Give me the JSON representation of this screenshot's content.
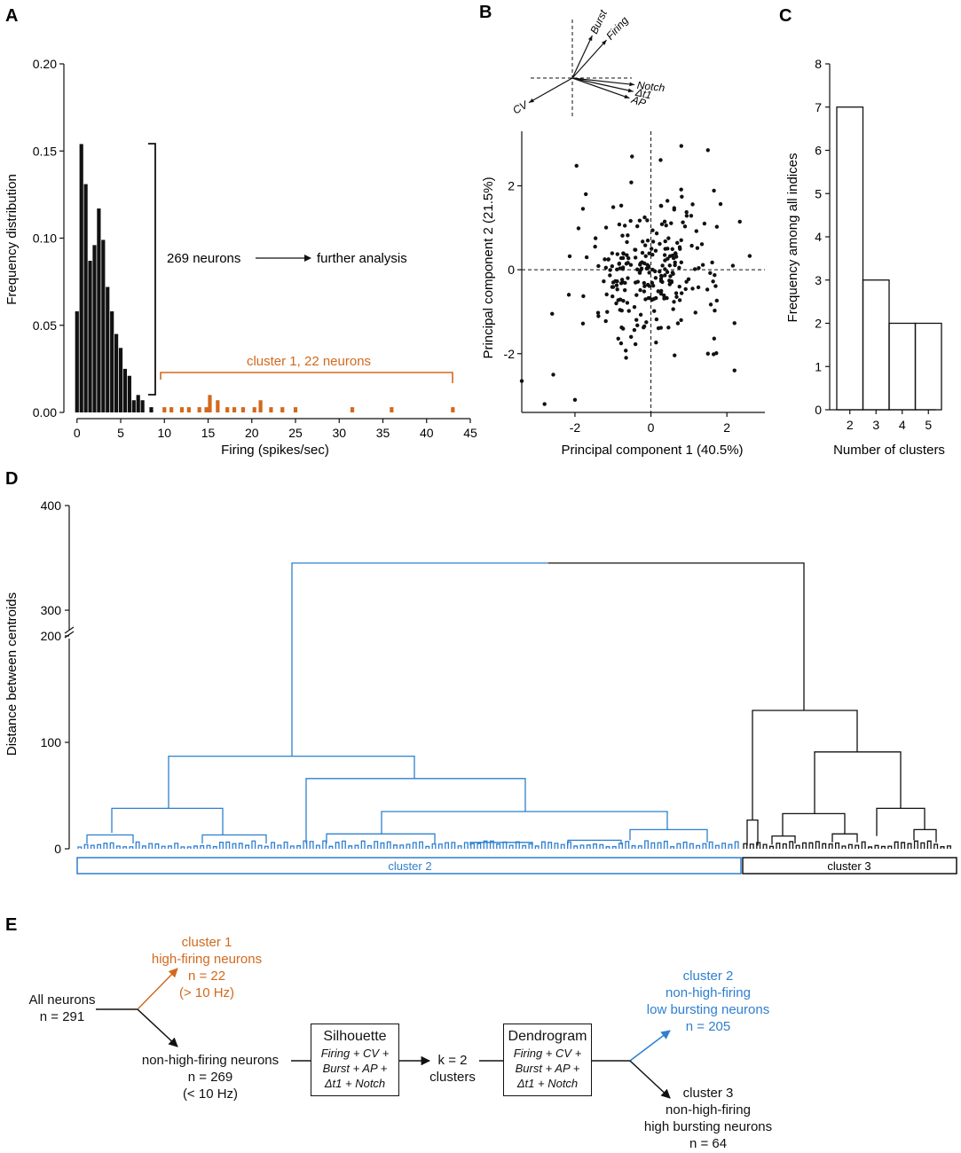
{
  "colors": {
    "black": "#111111",
    "orange": "#d2691e",
    "blue": "#2f7fcf"
  },
  "panel_labels": {
    "a": "A",
    "b": "B",
    "c": "C",
    "d": "D",
    "e": "E"
  },
  "chart_data": [
    {
      "id": "A",
      "type": "bar",
      "xlabel": "Firing (spikes/sec)",
      "ylabel": "Frequency distribution",
      "xlim": [
        -1.5,
        45
      ],
      "ylim": [
        0,
        0.2
      ],
      "xticks": [
        0,
        5,
        10,
        15,
        20,
        25,
        30,
        35,
        40,
        45
      ],
      "yticks": [
        0.0,
        0.05,
        0.1,
        0.15,
        0.2
      ],
      "ytick_labels": [
        "0.00",
        "0.05",
        "0.10",
        "0.15",
        "0.20"
      ],
      "bin_width": 0.5,
      "series": [
        {
          "name": "non-high-firing",
          "color": "black",
          "x": [
            0,
            0.5,
            1,
            1.5,
            2,
            2.5,
            3,
            3.5,
            4,
            4.5,
            5,
            5.5,
            6,
            6.5,
            7,
            7.5,
            8.5
          ],
          "values": [
            0.058,
            0.154,
            0.131,
            0.087,
            0.096,
            0.117,
            0.099,
            0.072,
            0.058,
            0.045,
            0.037,
            0.025,
            0.021,
            0.007,
            0.01,
            0.007,
            0.003
          ]
        },
        {
          "name": "cluster 1",
          "color": "orange",
          "x": [
            10,
            10.8,
            12,
            12.8,
            14,
            14.8,
            15.2,
            16.1,
            17.2,
            18,
            19,
            20.3,
            21,
            22.2,
            23.5,
            25,
            31.5,
            36,
            43
          ],
          "values": [
            0.003,
            0.003,
            0.003,
            0.003,
            0.003,
            0.003,
            0.01,
            0.007,
            0.003,
            0.003,
            0.003,
            0.003,
            0.007,
            0.003,
            0.003,
            0.003,
            0.003,
            0.003,
            0.003
          ]
        }
      ],
      "annotations": {
        "neurons_text": "269 neurons",
        "analysis_text": "further analysis",
        "cluster_text": "cluster 1, 22 neurons"
      }
    },
    {
      "id": "B",
      "type": "scatter",
      "xlabel": "Principal component 1 (40.5%)",
      "ylabel": "Principal component 2 (21.5%)",
      "xlim": [
        -3.4,
        3.0
      ],
      "ylim": [
        -3.4,
        3.3
      ],
      "xticks": [
        -2,
        0,
        2
      ],
      "yticks": [
        -2,
        0,
        2
      ],
      "n_points": 269,
      "loadings": [
        {
          "label": "Burst",
          "x": 0.32,
          "y": 0.95
        },
        {
          "label": "Firing",
          "x": 0.55,
          "y": 0.85
        },
        {
          "label": "Notch",
          "x": 1.0,
          "y": -0.15
        },
        {
          "label": "Δt1",
          "x": 0.98,
          "y": -0.3
        },
        {
          "label": "AP",
          "x": 0.92,
          "y": -0.45
        },
        {
          "label": "CV",
          "x": -0.7,
          "y": -0.55
        }
      ]
    },
    {
      "id": "C",
      "type": "bar",
      "xlabel": "Number of clusters",
      "ylabel": "Frequency among all indices",
      "categories": [
        "2",
        "3",
        "4",
        "5"
      ],
      "values": [
        7,
        3,
        2,
        2
      ],
      "ylim": [
        0,
        8
      ],
      "yticks": [
        0,
        1,
        2,
        3,
        4,
        5,
        6,
        7,
        8
      ]
    },
    {
      "id": "D",
      "type": "dendrogram",
      "ylabel": "Distance between centroids",
      "yticks": [
        0,
        100,
        200,
        300,
        400
      ],
      "axis_break": "200–300",
      "clusters": [
        {
          "name": "cluster 2",
          "color": "blue",
          "n": 205
        },
        {
          "name": "cluster 3",
          "color": "black",
          "n": 64
        }
      ],
      "merge_heights": {
        "root": 345,
        "cluster2_top": 87,
        "cluster3_top": 130,
        "cluster2_left": 38,
        "cluster2_right": 66,
        "cluster3_inner": 91
      }
    }
  ],
  "flow": {
    "all_neurons": "All neurons",
    "all_n": "n = 291",
    "c1_title": "cluster 1",
    "c1_desc": "high-firing neurons",
    "c1_n": "n = 22",
    "c1_hz": "(> 10 Hz)",
    "nh_title": "non-high-firing neurons",
    "nh_n": "n = 269",
    "nh_hz": "(< 10 Hz)",
    "sil_title": "Silhouette",
    "sil_l1": "Firing + CV +",
    "sil_l2": "Burst + AP +",
    "sil_l3": "Δt1 + Notch",
    "k_l1": "k = 2",
    "k_l2": "clusters",
    "dend_title": "Dendrogram",
    "dend_l1": "Firing + CV +",
    "dend_l2": "Burst + AP +",
    "dend_l3": "Δt1 + Notch",
    "c2_title": "cluster 2",
    "c2_desc1": "non-high-firing",
    "c2_desc2": "low bursting neurons",
    "c2_n": "n = 205",
    "c3_title": "cluster 3",
    "c3_desc1": "non-high-firing",
    "c3_desc2": "high bursting neurons",
    "c3_n": "n = 64"
  }
}
